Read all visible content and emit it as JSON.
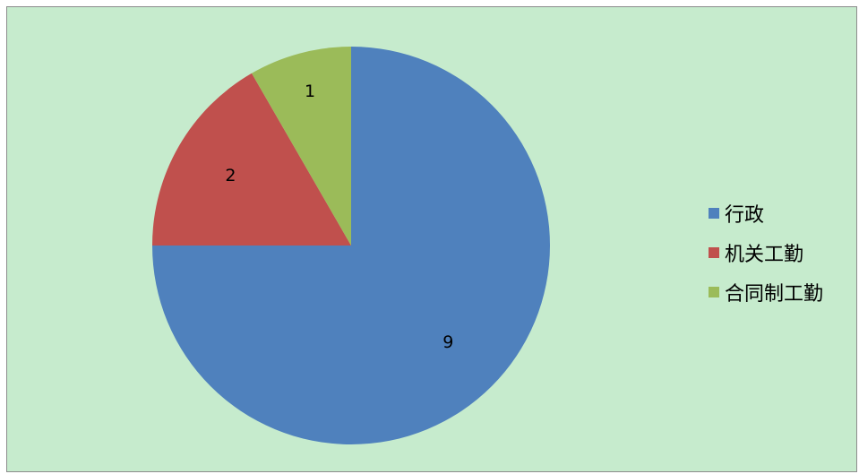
{
  "chart_data": {
    "type": "pie",
    "categories": [
      "行政",
      "机关工勤",
      "合同制工勤"
    ],
    "values": [
      9,
      2,
      1
    ],
    "data_labels": [
      "9",
      "2",
      "1"
    ],
    "colors": [
      "#4f81bd",
      "#c0504d",
      "#9bbb59"
    ],
    "title": "",
    "legend_placement": "right",
    "background": "#c6ebcd",
    "start_angle_deg": 0,
    "direction": "clockwise"
  }
}
